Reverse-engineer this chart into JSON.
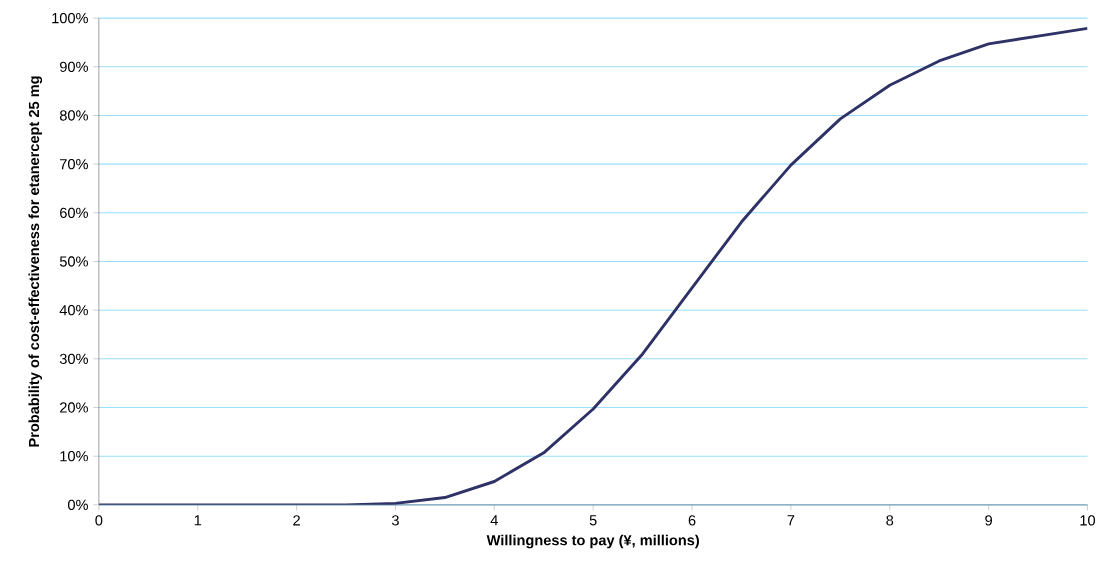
{
  "chart_data": {
    "type": "line",
    "xlabel": "Willingness to pay (¥, millions)",
    "ylabel": "Probability of cost-effectiveness for etanercept 25 mg",
    "x": [
      0,
      0.5,
      1,
      1.5,
      2,
      2.5,
      3,
      3.5,
      4,
      4.5,
      5,
      5.5,
      6,
      6.5,
      7,
      7.5,
      8,
      8.5,
      9,
      9.5,
      10
    ],
    "series": [
      {
        "color": "#2f3267",
        "values": [
          0,
          0,
          0,
          0,
          0,
          0,
          0.3,
          1.5,
          4.8,
          10.7,
          19.7,
          31,
          44.6,
          58.1,
          69.8,
          79.3,
          86.2,
          91.2,
          94.7,
          96.3,
          97.9
        ]
      }
    ],
    "xlim": [
      0,
      10
    ],
    "ylim": [
      0,
      100
    ],
    "xticks": [
      0,
      1,
      2,
      3,
      4,
      5,
      6,
      7,
      8,
      9,
      10
    ],
    "yticks": [
      {
        "value": 0,
        "label": "0%"
      },
      {
        "value": 10,
        "label": "10%"
      },
      {
        "value": 20,
        "label": "20%"
      },
      {
        "value": 30,
        "label": "30%"
      },
      {
        "value": 40,
        "label": "40%"
      },
      {
        "value": 50,
        "label": "50%"
      },
      {
        "value": 60,
        "label": "60%"
      },
      {
        "value": 70,
        "label": "70%"
      },
      {
        "value": 80,
        "label": "80%"
      },
      {
        "value": 90,
        "label": "90%"
      },
      {
        "value": 100,
        "label": "100%"
      }
    ],
    "grid": "y",
    "marker": "none",
    "line_style": "solid"
  }
}
